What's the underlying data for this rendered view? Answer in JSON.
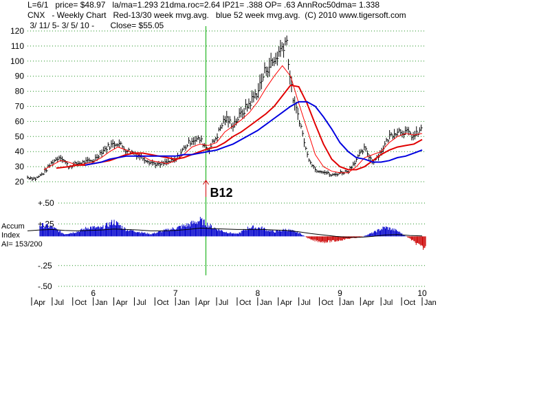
{
  "header": {
    "line1": "L=6/1   price= $48.97   la/ma=1.293 21dma.roc=2.64 IP21= .388 OP= .63 AnnRoc50dma= 1.338",
    "line2": "CNX   - Weekly Chart   Red-13/30 week mvg.avg.   blue 52 week mvg.avg.  (C) 2010 www.tigersoft.com",
    "line3": " 3/ 11/ 5- 3/ 5/ 10 -       Close= $55.05"
  },
  "colors": {
    "price": "#000000",
    "ma13": "#ff0000",
    "ma30": "#e00000",
    "ma52": "#0000e0",
    "grid": "#1a8f1a",
    "signal_line": "#00aa00",
    "accum_pos": "#0000cc",
    "accum_neg": "#cc0000",
    "accum_ma": "#000000"
  },
  "signal": {
    "label": "B12",
    "x": 2007.37
  },
  "accum_label": {
    "line1": "Accum",
    "line2": "Index",
    "line3": "AI= 153/200"
  },
  "chart_data": [
    {
      "type": "line",
      "title": "CNX - Weekly Chart",
      "ylim": [
        20,
        120
      ],
      "y_ticks": [
        20,
        30,
        40,
        50,
        60,
        70,
        80,
        90,
        100,
        110,
        120
      ],
      "xlim": [
        2005.2,
        2010.05
      ],
      "grid": true,
      "year_ticks": [
        {
          "x": 2006,
          "label": "6"
        },
        {
          "x": 2007,
          "label": "7"
        },
        {
          "x": 2008,
          "label": "8"
        },
        {
          "x": 2009,
          "label": "9"
        },
        {
          "x": 2010,
          "label": "10"
        }
      ],
      "month_ticks": [
        {
          "x": 2005.25,
          "label": "Apr"
        },
        {
          "x": 2005.5,
          "label": "Jul"
        },
        {
          "x": 2005.75,
          "label": "Oct"
        },
        {
          "x": 2006.0,
          "label": "Jan"
        },
        {
          "x": 2006.25,
          "label": "Apr"
        },
        {
          "x": 2006.5,
          "label": "Jul"
        },
        {
          "x": 2006.75,
          "label": "Oct"
        },
        {
          "x": 2007.0,
          "label": "Jan"
        },
        {
          "x": 2007.25,
          "label": "Apr"
        },
        {
          "x": 2007.5,
          "label": "Jul"
        },
        {
          "x": 2007.75,
          "label": "Oct"
        },
        {
          "x": 2008.0,
          "label": "Jan"
        },
        {
          "x": 2008.25,
          "label": "Apr"
        },
        {
          "x": 2008.5,
          "label": "Jul"
        },
        {
          "x": 2008.75,
          "label": "Oct"
        },
        {
          "x": 2009.0,
          "label": "Jan"
        },
        {
          "x": 2009.25,
          "label": "Apr"
        },
        {
          "x": 2009.5,
          "label": "Jul"
        },
        {
          "x": 2009.75,
          "label": "Oct"
        },
        {
          "x": 2010.0,
          "label": "Jan"
        }
      ],
      "price": {
        "x": [
          2005.2,
          2005.3,
          2005.4,
          2005.5,
          2005.6,
          2005.7,
          2005.8,
          2005.9,
          2006.0,
          2006.1,
          2006.2,
          2006.3,
          2006.4,
          2006.5,
          2006.6,
          2006.7,
          2006.8,
          2006.9,
          2007.0,
          2007.1,
          2007.2,
          2007.3,
          2007.4,
          2007.5,
          2007.6,
          2007.7,
          2007.8,
          2007.9,
          2008.0,
          2008.1,
          2008.2,
          2008.3,
          2008.35,
          2008.4,
          2008.45,
          2008.5,
          2008.6,
          2008.7,
          2008.8,
          2008.9,
          2009.0,
          2009.1,
          2009.2,
          2009.3,
          2009.4,
          2009.5,
          2009.6,
          2009.7,
          2009.8,
          2009.9,
          2010.0
        ],
        "y": [
          23,
          22,
          26,
          33,
          37,
          30,
          32,
          33,
          34,
          40,
          44,
          46,
          41,
          39,
          36,
          33,
          31,
          33,
          34,
          42,
          48,
          48,
          41,
          50,
          62,
          58,
          65,
          72,
          80,
          95,
          100,
          110,
          115,
          85,
          70,
          63,
          38,
          28,
          27,
          24,
          26,
          27,
          35,
          42,
          33,
          40,
          50,
          54,
          53,
          50,
          55
        ]
      },
      "series": [
        {
          "name": "13 week mvg.avg.",
          "x": [
            2005.4,
            2005.5,
            2005.6,
            2005.7,
            2005.8,
            2005.9,
            2006.0,
            2006.1,
            2006.2,
            2006.3,
            2006.4,
            2006.5,
            2006.6,
            2006.7,
            2006.8,
            2006.9,
            2007.0,
            2007.1,
            2007.2,
            2007.3,
            2007.4,
            2007.5,
            2007.6,
            2007.7,
            2007.8,
            2007.9,
            2008.0,
            2008.1,
            2008.2,
            2008.3,
            2008.4,
            2008.5,
            2008.6,
            2008.7,
            2008.8,
            2008.9,
            2009.0,
            2009.1,
            2009.2,
            2009.3,
            2009.4,
            2009.5,
            2009.6,
            2009.7,
            2009.8,
            2009.9,
            2010.0
          ],
          "values": [
            28,
            31,
            34,
            33,
            31,
            32,
            33,
            36,
            40,
            43,
            41,
            39,
            37,
            34,
            33,
            32,
            34,
            38,
            43,
            45,
            44,
            46,
            53,
            57,
            61,
            66,
            73,
            82,
            90,
            97,
            90,
            72,
            55,
            38,
            30,
            27,
            26,
            26,
            30,
            36,
            38,
            40,
            46,
            50,
            52,
            51,
            52
          ]
        },
        {
          "name": "30 week mvg.avg.",
          "x": [
            2005.55,
            2005.7,
            2005.8,
            2005.9,
            2006.0,
            2006.1,
            2006.2,
            2006.3,
            2006.4,
            2006.5,
            2006.6,
            2006.7,
            2006.8,
            2006.9,
            2007.0,
            2007.1,
            2007.2,
            2007.3,
            2007.4,
            2007.5,
            2007.6,
            2007.7,
            2007.8,
            2007.9,
            2008.0,
            2008.1,
            2008.2,
            2008.3,
            2008.4,
            2008.5,
            2008.6,
            2008.7,
            2008.8,
            2008.9,
            2009.0,
            2009.1,
            2009.2,
            2009.3,
            2009.4,
            2009.5,
            2009.6,
            2009.7,
            2009.8,
            2009.9,
            2010.0
          ],
          "values": [
            29,
            30,
            31,
            31,
            32,
            33,
            34,
            36,
            38,
            39,
            39,
            38,
            37,
            36,
            35,
            36,
            38,
            40,
            42,
            43,
            46,
            50,
            53,
            57,
            61,
            65,
            70,
            77,
            84,
            83,
            72,
            58,
            45,
            35,
            30,
            28,
            28,
            30,
            34,
            38,
            41,
            43,
            44,
            45,
            48
          ]
        },
        {
          "name": "52 week mvg.avg.",
          "x": [
            2005.9,
            2006.0,
            2006.1,
            2006.2,
            2006.3,
            2006.4,
            2006.5,
            2006.6,
            2006.7,
            2006.8,
            2006.9,
            2007.0,
            2007.1,
            2007.2,
            2007.3,
            2007.4,
            2007.5,
            2007.6,
            2007.7,
            2007.8,
            2007.9,
            2008.0,
            2008.1,
            2008.2,
            2008.3,
            2008.4,
            2008.5,
            2008.6,
            2008.7,
            2008.8,
            2008.9,
            2009.0,
            2009.1,
            2009.2,
            2009.3,
            2009.4,
            2009.5,
            2009.6,
            2009.7,
            2009.8,
            2009.9,
            2010.0
          ],
          "values": [
            31,
            32,
            33,
            35,
            36,
            37,
            37,
            37,
            37,
            37,
            37,
            37,
            38,
            38,
            39,
            40,
            41,
            43,
            45,
            48,
            51,
            54,
            58,
            62,
            66,
            70,
            73,
            73,
            70,
            63,
            55,
            46,
            40,
            36,
            35,
            33,
            33,
            34,
            36,
            37,
            39,
            41
          ]
        }
      ]
    },
    {
      "type": "bar",
      "title": "Accum Index",
      "ylim": [
        -0.5,
        0.5
      ],
      "y_ticks": [
        {
          "value": 0.5,
          "label": "+.50"
        },
        {
          "value": 0.25,
          "label": "+.25"
        },
        {
          "value": -0.25,
          "label": "-.25"
        },
        {
          "value": -0.5,
          "label": "-.50"
        }
      ],
      "x": [
        2005.2,
        2005.35,
        2005.5,
        2005.65,
        2005.8,
        2005.95,
        2006.1,
        2006.25,
        2006.4,
        2006.55,
        2006.7,
        2006.85,
        2007.0,
        2007.15,
        2007.3,
        2007.45,
        2007.6,
        2007.75,
        2007.9,
        2008.05,
        2008.2,
        2008.35,
        2008.5,
        2008.65,
        2008.8,
        2008.95,
        2009.1,
        2009.25,
        2009.4,
        2009.55,
        2009.7,
        2009.85,
        2010.0
      ],
      "values": [
        0.2,
        0.25,
        0.2,
        0.05,
        0.1,
        0.2,
        0.18,
        0.32,
        0.15,
        0.1,
        0.05,
        0.12,
        0.18,
        0.25,
        0.35,
        0.2,
        0.1,
        0.05,
        0.2,
        0.18,
        0.1,
        0.15,
        0.08,
        -0.08,
        -0.12,
        -0.1,
        -0.05,
        -0.02,
        0.08,
        0.2,
        0.12,
        -0.05,
        -0.25
      ],
      "ma_values": [
        0.12,
        0.14,
        0.15,
        0.13,
        0.12,
        0.13,
        0.14,
        0.16,
        0.15,
        0.14,
        0.12,
        0.12,
        0.13,
        0.15,
        0.18,
        0.17,
        0.16,
        0.15,
        0.15,
        0.15,
        0.14,
        0.13,
        0.1,
        0.06,
        0.03,
        0.0,
        -0.02,
        -0.02,
        0.0,
        0.03,
        0.04,
        0.02,
        0.01
      ]
    }
  ]
}
